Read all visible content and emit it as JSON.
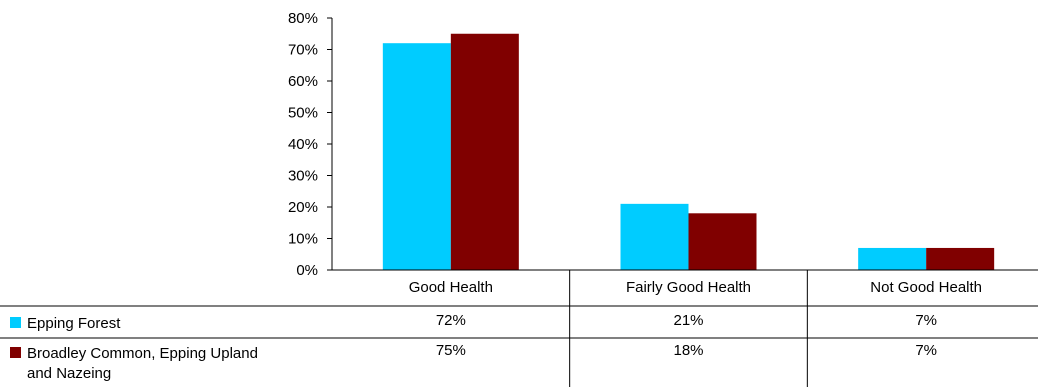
{
  "chart_data": {
    "type": "bar",
    "categories": [
      "Good Health",
      "Fairly Good Health",
      "Not Good Health"
    ],
    "series": [
      {
        "name": "Epping Forest",
        "values": [
          72,
          21,
          7
        ],
        "color": "#00ccff",
        "labels": [
          "72%",
          "21%",
          "7%"
        ]
      },
      {
        "name": "Broadley Common, Epping Upland and Nazeing",
        "values": [
          75,
          18,
          7
        ],
        "color": "#800000",
        "labels": [
          "75%",
          "18%",
          "7%"
        ]
      }
    ],
    "ylim": [
      0,
      80
    ],
    "yticks": [
      "0%",
      "10%",
      "20%",
      "30%",
      "40%",
      "50%",
      "60%",
      "70%",
      "80%"
    ],
    "grid": false,
    "legend": "data-table-left"
  }
}
